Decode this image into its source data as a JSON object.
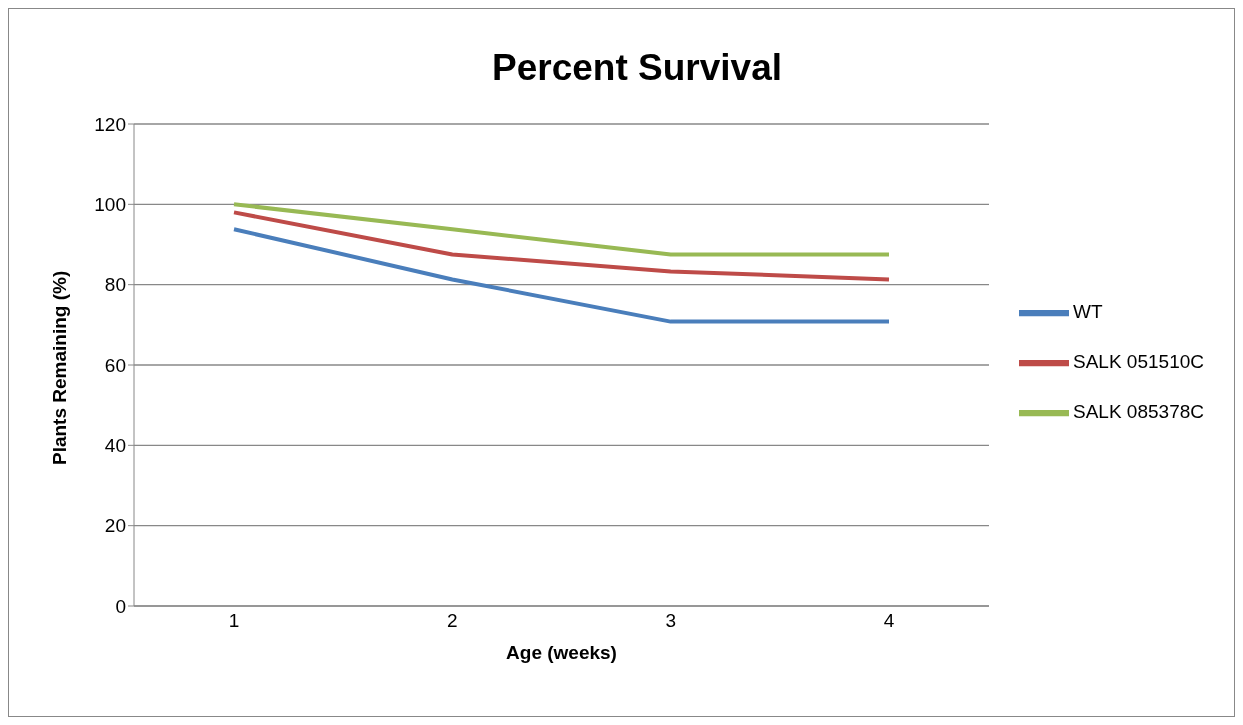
{
  "chart_data": {
    "type": "line",
    "title": "Percent Survival",
    "xlabel": "Age (weeks)",
    "ylabel": "Plants Remaining (%)",
    "categories": [
      "1",
      "2",
      "3",
      "4"
    ],
    "series": [
      {
        "name": "WT",
        "color": "#4a7ebb",
        "values": [
          93.8,
          81.3,
          70.8,
          70.8
        ]
      },
      {
        "name": "SALK 051510C",
        "color": "#be4b48",
        "values": [
          98,
          87.5,
          83.3,
          81.3
        ]
      },
      {
        "name": "SALK 085378C",
        "color": "#98b954",
        "values": [
          100,
          93.8,
          87.5,
          87.5
        ]
      }
    ],
    "ylim": [
      0,
      120
    ],
    "yticks": [
      0,
      20,
      40,
      60,
      80,
      100,
      120
    ],
    "grid": "y",
    "legend": "right",
    "marker": "none",
    "line_style": "solid"
  }
}
